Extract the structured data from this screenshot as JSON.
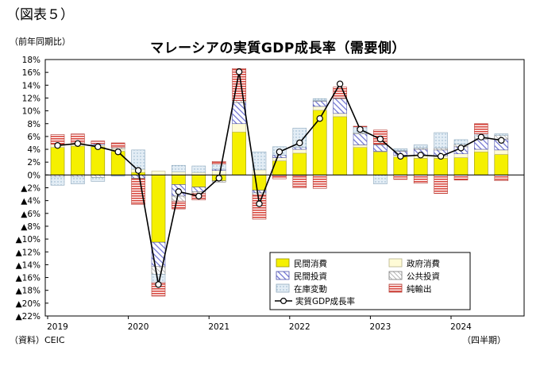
{
  "header": {
    "figure_label": "（図表５）",
    "y_unit": "（前年同期比）",
    "title": "マレーシアの実質GDP成長率（需要側）",
    "source": "（資料）CEIC",
    "x_unit": "（四半期）"
  },
  "chart_data": {
    "type": "bar",
    "title": "マレーシアの実質GDP成長率（需要側）",
    "stacked": true,
    "ylim": [
      -22,
      18
    ],
    "yticks": [
      18,
      16,
      14,
      12,
      10,
      8,
      6,
      4,
      2,
      0,
      -2,
      -4,
      -6,
      -8,
      -10,
      -12,
      -14,
      -16,
      -18,
      -20,
      -22
    ],
    "ytick_labels": [
      "18%",
      "16%",
      "14%",
      "12%",
      "10%",
      "8%",
      "6%",
      "4%",
      "2%",
      "0%",
      "▲2%",
      "▲4%",
      "▲6%",
      "▲8%",
      "▲10%",
      "▲12%",
      "▲14%",
      "▲16%",
      "▲18%",
      "▲20%",
      "▲22%"
    ],
    "x_labels": [
      "2019",
      "2020",
      "2021",
      "2022",
      "2023",
      "2024"
    ],
    "categories": [
      "2019Q1",
      "2019Q2",
      "2019Q3",
      "2019Q4",
      "2020Q1",
      "2020Q2",
      "2020Q3",
      "2020Q4",
      "2021Q1",
      "2021Q2",
      "2021Q3",
      "2021Q4",
      "2022Q1",
      "2022Q2",
      "2022Q3",
      "2022Q4",
      "2023Q1",
      "2023Q2",
      "2023Q3",
      "2023Q4",
      "2024Q1",
      "2024Q2",
      "2024Q3"
    ],
    "grid": false,
    "legend_position": "bottom-right",
    "colors": {
      "private_consumption": "#f5f000",
      "government_consumption": "#fffbd6",
      "private_investment": "#6b6fd0",
      "public_investment": "#9b9b9b",
      "inventory": "#c9dceb",
      "net_exports": "#d8483f",
      "gdp_line": "#000000"
    },
    "series": [
      {
        "name": "民間消費",
        "key": "private_consumption",
        "pattern": "solid",
        "values": [
          4.3,
          4.5,
          4.4,
          3.7,
          0.4,
          -10.5,
          -1.5,
          -1.9,
          -0.9,
          6.7,
          -2.4,
          2.2,
          3.4,
          10.1,
          9.1,
          4.3,
          3.6,
          2.8,
          2.6,
          2.6,
          2.7,
          3.6,
          3.2
        ]
      },
      {
        "name": "政府消費",
        "key": "government_consumption",
        "pattern": "solid",
        "values": [
          0.5,
          0.5,
          0.3,
          0.4,
          0.5,
          0.6,
          0.5,
          0.4,
          0.7,
          1.3,
          0.8,
          0.5,
          0.6,
          0.6,
          0.5,
          0.4,
          0.1,
          0.3,
          0.5,
          0.4,
          0.6,
          0.4,
          0.7
        ]
      },
      {
        "name": "民間投資",
        "key": "private_investment",
        "pattern": "hatch",
        "values": [
          0.0,
          0.0,
          0.2,
          -0.1,
          -0.5,
          -3.8,
          -1.8,
          -0.7,
          0.2,
          3.3,
          -0.4,
          0.4,
          0.3,
          0.8,
          2.3,
          1.7,
          1.0,
          0.6,
          0.9,
          0.9,
          1.1,
          1.6,
          1.7
        ]
      },
      {
        "name": "公共投資",
        "key": "public_investment",
        "pattern": "hatch",
        "values": [
          -0.3,
          -0.3,
          -0.4,
          0.2,
          -0.1,
          -1.2,
          -0.8,
          -0.3,
          -0.2,
          0.3,
          -0.3,
          -0.1,
          -0.1,
          0.1,
          0.1,
          0.2,
          0.1,
          0.1,
          0.2,
          0.3,
          0.4,
          0.5,
          0.6
        ]
      },
      {
        "name": "在庫変動",
        "key": "inventory",
        "pattern": "dots",
        "values": [
          -1.3,
          -1.1,
          -0.6,
          -0.1,
          3.0,
          -1.3,
          1.0,
          1.0,
          0.8,
          0.0,
          2.8,
          1.3,
          3.0,
          0.3,
          0.0,
          0.9,
          -1.4,
          0.3,
          0.5,
          2.4,
          0.7,
          0.3,
          0.2
        ]
      },
      {
        "name": "純輸出",
        "key": "net_exports",
        "pattern": "hlines",
        "values": [
          1.5,
          1.4,
          0.4,
          0.7,
          -4.0,
          -2.1,
          -1.2,
          -1.0,
          0.4,
          5.0,
          -3.8,
          -0.5,
          -1.9,
          -2.1,
          1.7,
          0.1,
          2.2,
          -0.7,
          -1.3,
          -2.9,
          -0.8,
          1.6,
          -0.9
        ]
      },
      {
        "name": "実質GDP成長率",
        "key": "gdp_line",
        "type": "line",
        "values": [
          4.6,
          4.9,
          4.4,
          3.6,
          0.7,
          -17.1,
          -2.6,
          -3.3,
          -0.5,
          16.1,
          -4.5,
          3.6,
          5.0,
          8.8,
          14.2,
          7.1,
          5.6,
          2.9,
          3.1,
          2.9,
          4.2,
          5.9,
          5.4
        ]
      }
    ]
  }
}
